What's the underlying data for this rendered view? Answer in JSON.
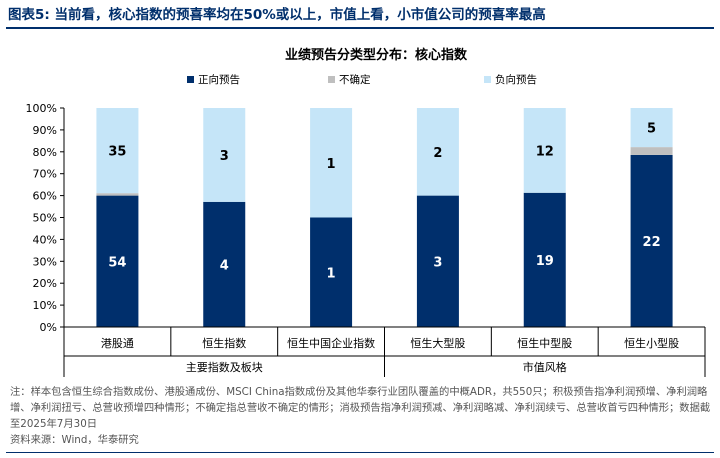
{
  "figure_caption": "图表5:  当前看，核心指数的预喜率均在50%或以上，市值上看，小市值公司的预喜率最高",
  "notes": "注：样本包含恒生综合指数成份、港股通成份、MSCI China指数成份及其他华泰行业团队覆盖的中概ADR，共550只；积极预告指净利润预增、净利润略增、净利润扭亏、总营收预增四种情形；不确定指总营收不确定的情形；消极预告指净利润预减、净利润略减、净利润续亏、总营收首亏四种情形；数据截至2025年7月30日",
  "source": "资料来源：Wind，华泰研究",
  "colors": {
    "positive": "#002F6C",
    "uncertain": "#BFBFBF",
    "negative": "#C5E5F8",
    "title": "#002F6C"
  },
  "chart_data": {
    "type": "bar",
    "stacked": "percent",
    "title": "业绩预告分类型分布：核心指数",
    "legend_position": "top",
    "categories": [
      "港股通",
      "恒生指数",
      "恒生中国企业指数",
      "恒生大型股",
      "恒生中型股",
      "恒生小型股"
    ],
    "groups": [
      {
        "label": "主要指数及板块",
        "categories": [
          "港股通",
          "恒生指数",
          "恒生中国企业指数"
        ]
      },
      {
        "label": "市值风格",
        "categories": [
          "恒生大型股",
          "恒生中型股",
          "恒生小型股"
        ]
      }
    ],
    "series": [
      {
        "name": "正向预告",
        "values": [
          54,
          4,
          1,
          3,
          19,
          22
        ],
        "labels": [
          "54",
          "4",
          "1",
          "3",
          "19",
          "22"
        ]
      },
      {
        "name": "不确定",
        "values": [
          1,
          0,
          0,
          0,
          0,
          1
        ],
        "labels": [
          "",
          "",
          "",
          "",
          "",
          ""
        ]
      },
      {
        "name": "负向预告",
        "values": [
          35,
          3,
          1,
          2,
          12,
          5
        ],
        "labels": [
          "35",
          "3",
          "1",
          "2",
          "12",
          "5"
        ]
      }
    ],
    "yticks": [
      "0%",
      "10%",
      "20%",
      "30%",
      "40%",
      "50%",
      "60%",
      "70%",
      "80%",
      "90%",
      "100%"
    ],
    "ylim": [
      0,
      100
    ],
    "grid": false
  }
}
